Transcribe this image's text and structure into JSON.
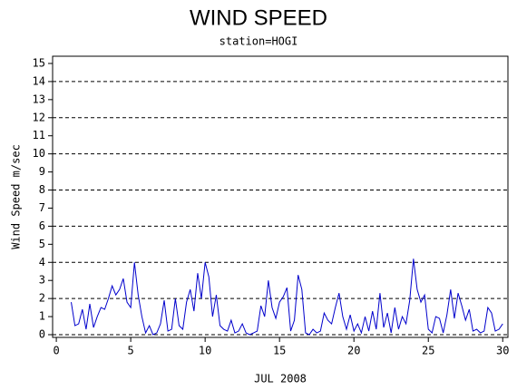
{
  "chart_data": {
    "type": "line",
    "title": "WIND SPEED",
    "subtitle": "station=HOGI",
    "y_label": "Wind Speed m/sec",
    "x_label": "JUL 2008",
    "x": [
      1,
      1.25,
      1.5,
      1.75,
      2,
      2.25,
      2.5,
      2.75,
      3,
      3.25,
      3.5,
      3.75,
      4,
      4.25,
      4.5,
      4.75,
      5,
      5.25,
      5.5,
      5.75,
      6,
      6.25,
      6.5,
      6.75,
      7,
      7.25,
      7.5,
      7.75,
      8,
      8.25,
      8.5,
      8.75,
      9,
      9.25,
      9.5,
      9.75,
      10,
      10.25,
      10.5,
      10.75,
      11,
      11.25,
      11.5,
      11.75,
      12,
      12.25,
      12.5,
      12.75,
      13,
      13.25,
      13.5,
      13.75,
      14,
      14.25,
      14.5,
      14.75,
      15,
      15.25,
      15.5,
      15.75,
      16,
      16.25,
      16.5,
      16.75,
      17,
      17.25,
      17.5,
      17.75,
      18,
      18.25,
      18.5,
      18.75,
      19,
      19.25,
      19.5,
      19.75,
      20,
      20.25,
      20.5,
      20.75,
      21,
      21.25,
      21.5,
      21.75,
      22,
      22.25,
      22.5,
      22.75,
      23,
      23.25,
      23.5,
      23.75,
      24,
      24.25,
      24.5,
      24.75,
      25,
      25.25,
      25.5,
      25.75,
      26,
      26.25,
      26.5,
      26.75,
      27,
      27.25,
      27.5,
      27.75,
      28,
      28.25,
      28.5,
      28.75,
      29,
      29.25,
      29.5,
      29.75,
      30
    ],
    "series": [
      {
        "name": "Wind Speed",
        "color": "#0000cc",
        "values": [
          1.8,
          0.5,
          0.6,
          1.4,
          0.3,
          1.7,
          0.4,
          1.0,
          1.5,
          1.4,
          2.0,
          2.7,
          2.2,
          2.5,
          3.1,
          1.8,
          1.5,
          4.0,
          2.2,
          1.0,
          0.1,
          0.5,
          0.0,
          0.1,
          0.6,
          1.9,
          0.2,
          0.3,
          2.0,
          0.5,
          0.3,
          1.8,
          2.5,
          1.3,
          3.4,
          2.0,
          4.0,
          3.2,
          1.0,
          2.2,
          0.5,
          0.3,
          0.2,
          0.8,
          0.1,
          0.2,
          0.6,
          0.1,
          0.0,
          0.1,
          0.2,
          1.6,
          1.0,
          3.0,
          1.5,
          0.9,
          1.8,
          2.1,
          2.6,
          0.2,
          0.8,
          3.3,
          2.5,
          0.1,
          0.0,
          0.3,
          0.1,
          0.2,
          1.2,
          0.8,
          0.6,
          1.5,
          2.3,
          1.0,
          0.3,
          1.1,
          0.2,
          0.6,
          0.1,
          1.0,
          0.2,
          1.3,
          0.3,
          2.3,
          0.4,
          1.2,
          0.1,
          1.5,
          0.3,
          1.0,
          0.6,
          1.9,
          4.2,
          2.5,
          1.8,
          2.2,
          0.3,
          0.1,
          1.0,
          0.9,
          0.1,
          1.1,
          2.5,
          0.9,
          2.3,
          1.6,
          0.8,
          1.4,
          0.2,
          0.3,
          0.1,
          0.2,
          1.5,
          1.2,
          0.2,
          0.3,
          0.6
        ]
      }
    ],
    "xlim": [
      -0.25,
      30.35
    ],
    "ylim": [
      -0.15,
      15.4
    ],
    "xticks": [
      0,
      5,
      10,
      15,
      20,
      25,
      30
    ],
    "yticks": [
      0,
      1,
      2,
      3,
      4,
      5,
      6,
      7,
      8,
      9,
      10,
      11,
      12,
      13,
      14,
      15
    ],
    "grid_y": [
      0,
      2,
      4,
      6,
      8,
      10,
      12,
      14
    ]
  }
}
